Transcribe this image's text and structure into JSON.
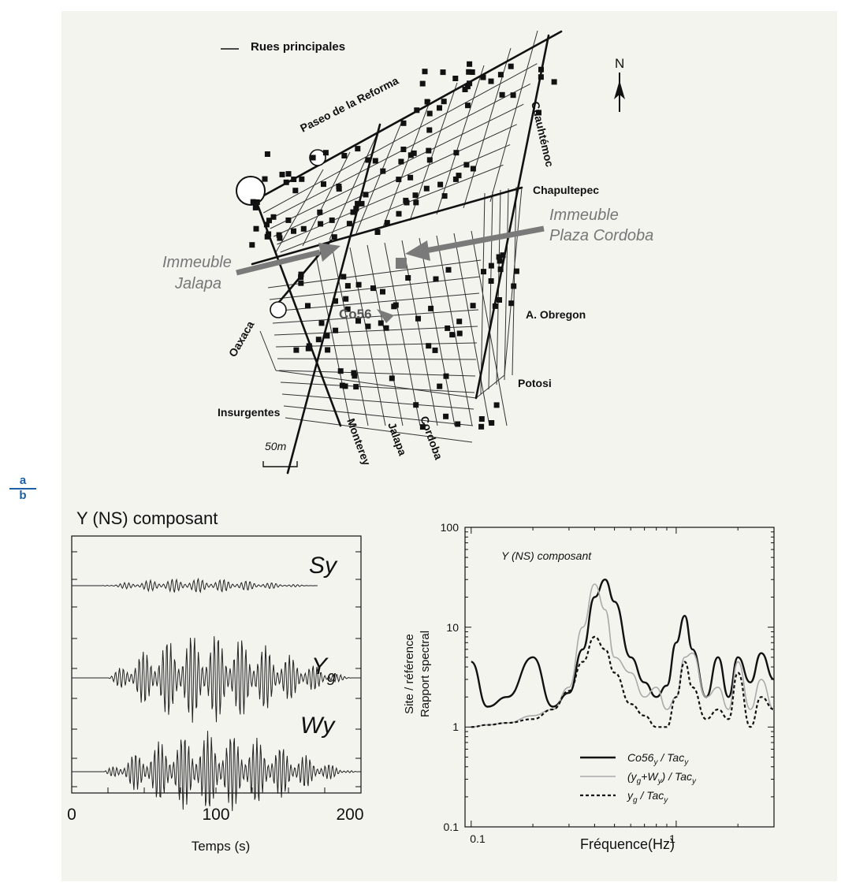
{
  "panel_labels": {
    "top": "a",
    "bottom": "b"
  },
  "map": {
    "legend": "Rues principales",
    "north": "N",
    "streets": {
      "reforma": "Paseo de la Reforma",
      "cuauhtemoc": "Cuauhtémoc",
      "chapultepec": "Chapultepec",
      "obregon": "A. Obregon",
      "potosi": "Potosi",
      "oaxaca": "Oaxaca",
      "insurgentes": "Insurgentes",
      "monterey": "Monterey",
      "jalapa": "Jalapa",
      "cordoba": "Cordoba"
    },
    "annotations": {
      "jalapa_line1": "Immeuble",
      "jalapa_line2": "Jalapa",
      "plaza_line1": "Immeuble",
      "plaza_line2": "Plaza Cordoba",
      "station": "Co56"
    },
    "scale": "50m"
  },
  "waveforms": {
    "title": "Y (NS) composant",
    "traces": [
      {
        "label": "Sy"
      },
      {
        "label": "Y",
        "sub": "g"
      },
      {
        "label": "Wy"
      }
    ],
    "xticks": [
      "0",
      "100",
      "200"
    ],
    "xlabel": "Temps (s)"
  },
  "spectra": {
    "title": "Y (NS) composant",
    "ylabel_line1": "Site / référence",
    "ylabel_line2": "Rapport spectral",
    "xlabel": "Fréquence(Hz)",
    "yticks": [
      "100",
      "10",
      "1",
      "0.1"
    ],
    "xticks": [
      "0.1",
      "1"
    ],
    "legend": [
      {
        "main": "Co56",
        "sub": "y",
        "tail": " / Tac",
        "tailsub": "y"
      },
      {
        "main": "(y",
        "sub": "g",
        "tail": "+W",
        "tailsub": "y",
        "end": ") / Tac",
        "endsub": "y"
      },
      {
        "main": "y",
        "sub": "g",
        "tail": " / Tac",
        "tailsub": "y"
      }
    ]
  },
  "chart_data": {
    "type": "line",
    "title": "Y (NS) composant",
    "xlabel": "Fréquence(Hz)",
    "ylabel": "Site / référence Rapport spectral",
    "xscale": "log",
    "yscale": "log",
    "xlim": [
      0.1,
      3.0
    ],
    "ylim": [
      0.1,
      100
    ],
    "x": [
      0.1,
      0.12,
      0.15,
      0.2,
      0.25,
      0.3,
      0.35,
      0.4,
      0.45,
      0.5,
      0.6,
      0.7,
      0.8,
      0.9,
      1.0,
      1.1,
      1.2,
      1.4,
      1.6,
      1.8,
      2.0,
      2.3,
      2.6,
      3.0
    ],
    "series": [
      {
        "name": "Co56y / Tacy",
        "values": [
          4.5,
          1.6,
          2.0,
          5.0,
          1.6,
          2.2,
          6.0,
          20.0,
          30.0,
          18.0,
          5.0,
          2.8,
          2.0,
          2.6,
          7.0,
          13.0,
          6.0,
          2.0,
          5.0,
          2.0,
          5.0,
          2.8,
          5.5,
          3.0
        ]
      },
      {
        "name": "(yg+Wy) / Tacy",
        "values": [
          1.0,
          1.05,
          1.1,
          1.3,
          1.5,
          2.5,
          10.0,
          27.0,
          15.0,
          5.0,
          3.5,
          2.0,
          2.5,
          1.5,
          2.0,
          5.0,
          5.5,
          2.0,
          2.5,
          1.5,
          4.5,
          1.5,
          3.0,
          1.5
        ]
      },
      {
        "name": "yg / Tacy",
        "values": [
          1.0,
          1.05,
          1.1,
          1.2,
          1.5,
          2.3,
          4.5,
          8.0,
          6.0,
          3.5,
          1.7,
          1.3,
          1.0,
          1.0,
          2.0,
          4.5,
          2.5,
          1.2,
          1.5,
          1.2,
          3.5,
          1.0,
          2.0,
          1.5
        ]
      }
    ]
  },
  "colors": {
    "panel": "#f3f4ee",
    "accent": "#1b5fa6",
    "map_annotation": "#777777",
    "light_curve": "#aaaaaa"
  }
}
